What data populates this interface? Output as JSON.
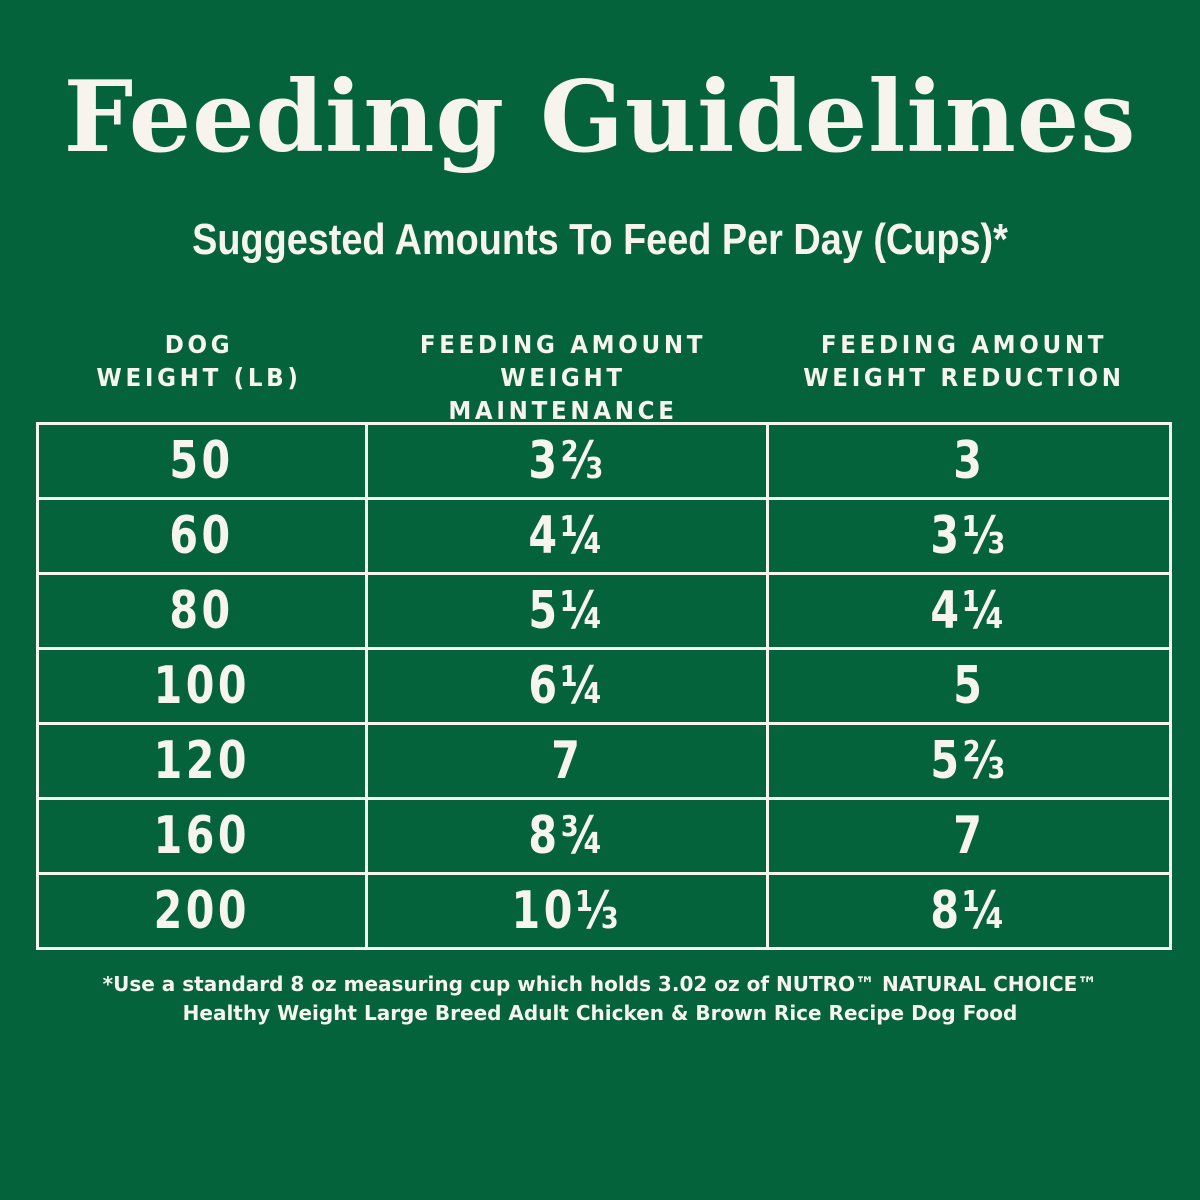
{
  "title": "Feeding Guidelines",
  "subtitle": "Suggested Amounts To Feed Per Day (Cups)*",
  "columns": [
    {
      "line1": "DOG",
      "line2": "WEIGHT (LB)"
    },
    {
      "line1": "FEEDING AMOUNT",
      "line2": "WEIGHT MAINTENANCE"
    },
    {
      "line1": "FEEDING AMOUNT",
      "line2": "WEIGHT REDUCTION"
    }
  ],
  "rows": [
    {
      "weight": "50",
      "maintenance": "3⅔",
      "reduction": "3"
    },
    {
      "weight": "60",
      "maintenance": "4¼",
      "reduction": "3⅓"
    },
    {
      "weight": "80",
      "maintenance": "5¼",
      "reduction": "4¼"
    },
    {
      "weight": "100",
      "maintenance": "6¼",
      "reduction": "5"
    },
    {
      "weight": "120",
      "maintenance": "7",
      "reduction": "5⅔"
    },
    {
      "weight": "160",
      "maintenance": "8¾",
      "reduction": "7"
    },
    {
      "weight": "200",
      "maintenance": "10⅓",
      "reduction": "8¼"
    }
  ],
  "footnote": {
    "line1": "*Use a standard 8 oz measuring cup which holds 3.02 oz of NUTRO™ NATURAL CHOICE™",
    "line2": "Healthy Weight Large Breed Adult Chicken & Brown Rice Recipe Dog Food"
  },
  "colors": {
    "background": "#05633c",
    "text": "#f6f4ec"
  }
}
